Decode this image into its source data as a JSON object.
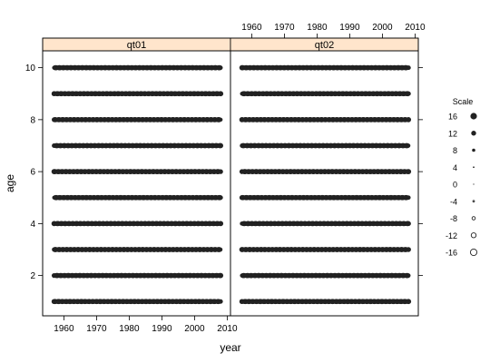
{
  "chart_data": {
    "type": "scatter",
    "xlabel": "year",
    "ylabel": "age",
    "panels": [
      {
        "label": "qt01",
        "xlim": [
          1953.5,
          2011
        ],
        "x_range": [
          1957,
          2008
        ]
      },
      {
        "label": "qt02",
        "xlim": [
          1953.5,
          2011
        ],
        "x_range": [
          1957,
          2008
        ]
      }
    ],
    "ylim": [
      0.45,
      10.65
    ],
    "y_ticks": [
      "2",
      "4",
      "6",
      "8",
      "10"
    ],
    "y_tick_values": [
      2,
      4,
      6,
      8,
      10
    ],
    "x_ticks": [
      "1960",
      "1970",
      "1980",
      "1990",
      "2000",
      "2010"
    ],
    "x_tick_values": [
      1960,
      1970,
      1980,
      1990,
      2000,
      2010
    ],
    "ages": [
      1,
      2,
      3,
      4,
      5,
      6,
      7,
      8,
      9,
      10
    ],
    "legend": {
      "title": "Scale",
      "entries": [
        {
          "label": "16",
          "value": 16
        },
        {
          "label": "12",
          "value": 12
        },
        {
          "label": "8",
          "value": 8
        },
        {
          "label": "4",
          "value": 4
        },
        {
          "label": "0",
          "value": 0
        },
        {
          "label": "-4",
          "value": -4
        },
        {
          "label": "-8",
          "value": -8
        },
        {
          "label": "-12",
          "value": -12
        },
        {
          "label": "-16",
          "value": -16
        }
      ]
    },
    "strip_color": "#ffe5cc",
    "point_color": "#222222"
  }
}
